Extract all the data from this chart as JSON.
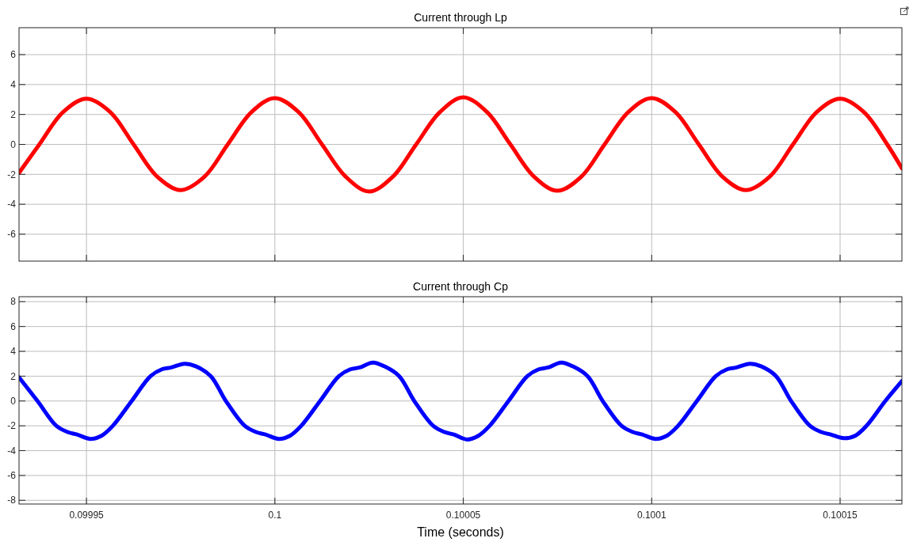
{
  "chart_data": [
    {
      "type": "line",
      "title": "Current through Lp",
      "xlim": [
        0.0999321,
        0.1001664
      ],
      "xticks": [
        0.09995,
        0.1,
        0.10005,
        0.1001,
        0.10015
      ],
      "ylim": [
        -7.8,
        7.8
      ],
      "yticks": [
        -6,
        -4,
        -2,
        0,
        2,
        4,
        6
      ],
      "grid": true,
      "tick_labels": "y",
      "marker": "none",
      "line_style": "solid",
      "series": [
        {
          "color": "#ff0000",
          "x": [
            0.0999321,
            0.0999375,
            0.0999438,
            0.09995,
            0.0999563,
            0.0999625,
            0.0999688,
            0.099975,
            0.0999813,
            0.0999875,
            0.0999938,
            0.1,
            0.1000063,
            0.1000125,
            0.1000188,
            0.100025,
            0.1000313,
            0.1000375,
            0.1000438,
            0.10005,
            0.1000563,
            0.1000625,
            0.1000688,
            0.100075,
            0.1000813,
            0.1000875,
            0.1000938,
            0.1001,
            0.1001063,
            0.1001125,
            0.1001188,
            0.100125,
            0.1001313,
            0.1001375,
            0.1001438,
            0.10015,
            0.1001563,
            0.1001625,
            0.1001664
          ],
          "values": [
            -1.9,
            0,
            2.16,
            3.05,
            2.16,
            0,
            -2.16,
            -3.05,
            -2.16,
            0,
            2.16,
            3.1,
            2.16,
            0,
            -2.16,
            -3.15,
            -2.16,
            0,
            2.16,
            3.15,
            2.16,
            0,
            -2.16,
            -3.1,
            -2.16,
            0,
            2.16,
            3.1,
            2.16,
            0,
            -2.16,
            -3.05,
            -2.16,
            0,
            2.16,
            3.05,
            2.16,
            0,
            -1.6
          ]
        }
      ]
    },
    {
      "type": "line",
      "title": "Current through Cp",
      "xlabel": "Time (seconds)",
      "xlim": [
        0.0999321,
        0.1001664
      ],
      "xticks": [
        0.09995,
        0.1,
        0.10005,
        0.1001,
        0.10015
      ],
      "ylim": [
        -8.3,
        8.4
      ],
      "yticks": [
        -8,
        -6,
        -4,
        -2,
        0,
        2,
        4,
        6,
        8
      ],
      "grid": true,
      "marker": "none",
      "line_style": "solid",
      "series": [
        {
          "color": "#0000ff",
          "x": [
            0.0999321,
            0.099937,
            0.099942,
            0.099945,
            0.0999475,
            0.099951,
            0.099954,
            0.099957,
            0.099962,
            0.099967,
            0.09997,
            0.0999725,
            0.099976,
            0.099979,
            0.099983,
            0.099987,
            0.099992,
            0.099995,
            0.0999975,
            0.100001,
            0.100004,
            0.100007,
            0.100012,
            0.100017,
            0.10002,
            0.1000225,
            0.100026,
            0.100029,
            0.100033,
            0.100037,
            0.100042,
            0.100045,
            0.1000475,
            0.100051,
            0.100054,
            0.100057,
            0.100062,
            0.100067,
            0.10007,
            0.1000725,
            0.100076,
            0.100079,
            0.100083,
            0.100087,
            0.100092,
            0.100095,
            0.1000975,
            0.100101,
            0.100104,
            0.100107,
            0.100112,
            0.100117,
            0.10012,
            0.1001225,
            0.100126,
            0.100129,
            0.100133,
            0.100137,
            0.100142,
            0.100145,
            0.1001475,
            0.100151,
            0.100154,
            0.100157,
            0.100162,
            0.1001664
          ],
          "values": [
            1.9,
            0,
            -2.0,
            -2.5,
            -2.7,
            -3.05,
            -2.8,
            -2.0,
            0,
            2.0,
            2.55,
            2.7,
            3.0,
            2.8,
            2.0,
            0,
            -2.0,
            -2.5,
            -2.7,
            -3.05,
            -2.8,
            -2.0,
            0,
            2.0,
            2.55,
            2.7,
            3.1,
            2.8,
            2.0,
            0,
            -2.0,
            -2.5,
            -2.7,
            -3.1,
            -2.8,
            -2.0,
            0,
            2.0,
            2.55,
            2.7,
            3.1,
            2.8,
            2.0,
            0,
            -2.0,
            -2.5,
            -2.7,
            -3.05,
            -2.8,
            -2.0,
            0,
            2.0,
            2.55,
            2.7,
            3.0,
            2.8,
            2.0,
            0,
            -2.0,
            -2.5,
            -2.7,
            -3.0,
            -2.8,
            -2.0,
            0,
            1.6
          ]
        }
      ]
    }
  ]
}
